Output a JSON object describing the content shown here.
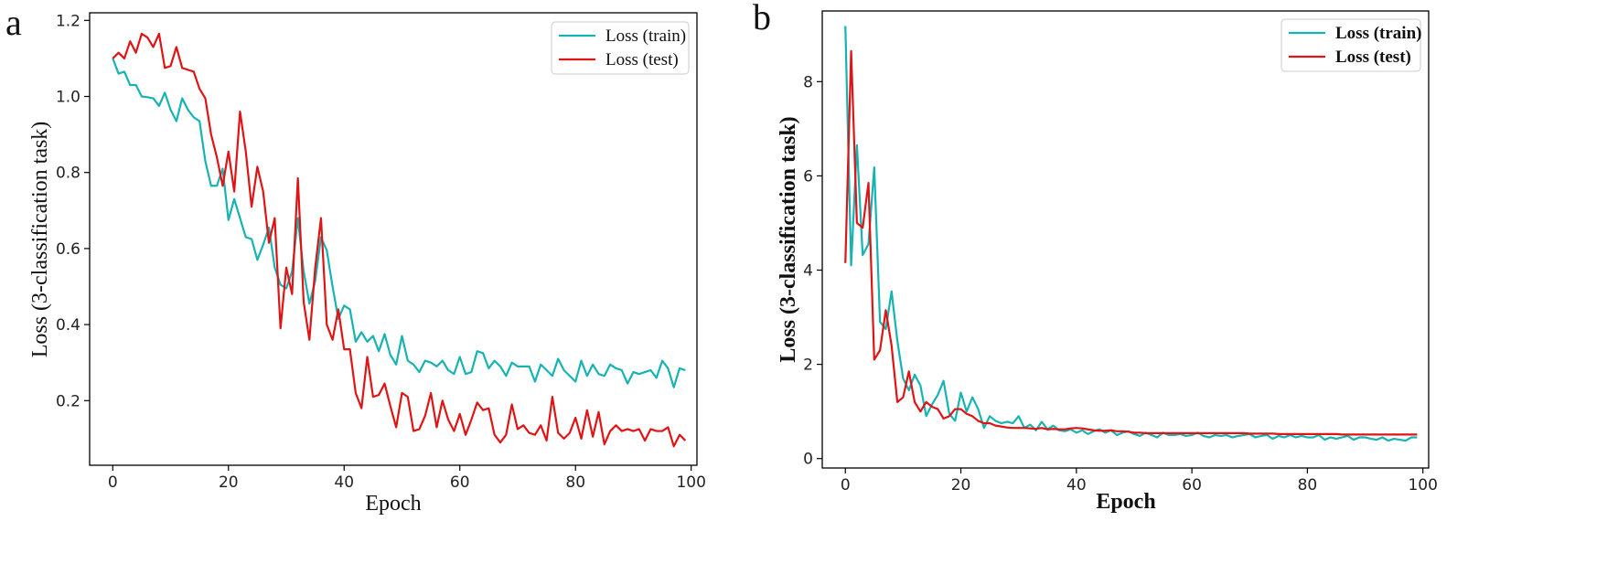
{
  "panels": [
    {
      "letter": "a",
      "xlabel": "Epoch",
      "ylabel": "Loss (3-classification task)",
      "legend": [
        "Loss (train)",
        "Loss (test)"
      ]
    },
    {
      "letter": "b",
      "xlabel": "Epoch",
      "ylabel": "Loss (3-classification task)",
      "legend": [
        "Loss (train)",
        "Loss (test)"
      ]
    }
  ],
  "colors": {
    "train": "#17b3b3",
    "test": "#e01414"
  },
  "chart_data": [
    {
      "type": "line",
      "title": "",
      "xlabel": "Epoch",
      "ylabel": "Loss (3-classification task)",
      "xlim": [
        -4,
        101
      ],
      "ylim": [
        0.03,
        1.22
      ],
      "xticks": [
        0,
        20,
        40,
        60,
        80,
        100
      ],
      "yticks": [
        0.2,
        0.4,
        0.6,
        0.8,
        1.0,
        1.2
      ],
      "ytick_labels": [
        "0.2",
        "0.4",
        "0.6",
        "0.8",
        "1.0",
        "1.2"
      ],
      "legend_position": "top-right",
      "series": [
        {
          "name": "Loss (train)",
          "color": "#17b3b3",
          "values": [
            1.1,
            1.06,
            1.065,
            1.03,
            1.03,
            1.0,
            0.998,
            0.995,
            0.975,
            1.01,
            0.965,
            0.935,
            0.995,
            0.965,
            0.945,
            0.935,
            0.83,
            0.765,
            0.765,
            0.81,
            0.675,
            0.73,
            0.68,
            0.63,
            0.625,
            0.57,
            0.61,
            0.655,
            0.55,
            0.505,
            0.495,
            0.54,
            0.68,
            0.54,
            0.455,
            0.515,
            0.63,
            0.595,
            0.5,
            0.415,
            0.45,
            0.44,
            0.355,
            0.38,
            0.355,
            0.37,
            0.33,
            0.375,
            0.32,
            0.295,
            0.37,
            0.305,
            0.295,
            0.275,
            0.305,
            0.3,
            0.29,
            0.305,
            0.28,
            0.27,
            0.315,
            0.27,
            0.275,
            0.33,
            0.325,
            0.285,
            0.305,
            0.29,
            0.265,
            0.3,
            0.29,
            0.29,
            0.29,
            0.25,
            0.295,
            0.28,
            0.265,
            0.31,
            0.28,
            0.265,
            0.25,
            0.305,
            0.265,
            0.295,
            0.27,
            0.265,
            0.295,
            0.285,
            0.28,
            0.245,
            0.275,
            0.27,
            0.275,
            0.28,
            0.26,
            0.305,
            0.285,
            0.235,
            0.285,
            0.28
          ]
        },
        {
          "name": "Loss (test)",
          "color": "#e01414",
          "values": [
            1.1,
            1.115,
            1.1,
            1.145,
            1.115,
            1.165,
            1.155,
            1.13,
            1.165,
            1.075,
            1.08,
            1.13,
            1.075,
            1.07,
            1.065,
            1.02,
            0.995,
            0.9,
            0.84,
            0.765,
            0.855,
            0.75,
            0.96,
            0.855,
            0.71,
            0.815,
            0.75,
            0.615,
            0.68,
            0.39,
            0.55,
            0.48,
            0.785,
            0.46,
            0.36,
            0.55,
            0.68,
            0.4,
            0.36,
            0.44,
            0.335,
            0.335,
            0.22,
            0.18,
            0.315,
            0.21,
            0.215,
            0.245,
            0.185,
            0.13,
            0.22,
            0.21,
            0.12,
            0.125,
            0.16,
            0.22,
            0.13,
            0.2,
            0.15,
            0.12,
            0.165,
            0.11,
            0.15,
            0.195,
            0.175,
            0.18,
            0.11,
            0.09,
            0.11,
            0.19,
            0.125,
            0.135,
            0.115,
            0.11,
            0.135,
            0.095,
            0.21,
            0.115,
            0.1,
            0.115,
            0.155,
            0.1,
            0.175,
            0.105,
            0.17,
            0.085,
            0.12,
            0.135,
            0.12,
            0.125,
            0.12,
            0.125,
            0.095,
            0.125,
            0.12,
            0.12,
            0.13,
            0.08,
            0.11,
            0.095
          ]
        }
      ]
    },
    {
      "type": "line",
      "title": "",
      "xlabel": "Epoch",
      "ylabel": "Loss (3-classification task)",
      "xlim": [
        -4,
        101
      ],
      "ylim": [
        -0.2,
        9.5
      ],
      "xticks": [
        0,
        20,
        40,
        60,
        80,
        100
      ],
      "yticks": [
        0,
        2,
        4,
        6,
        8
      ],
      "ytick_labels": [
        "0",
        "2",
        "4",
        "6",
        "8"
      ],
      "legend_position": "top-right",
      "series": [
        {
          "name": "Loss (train)",
          "color": "#17b3b3",
          "values": [
            9.18,
            4.1,
            6.65,
            4.32,
            4.55,
            6.18,
            2.9,
            2.75,
            3.55,
            2.5,
            1.7,
            1.45,
            1.78,
            1.55,
            0.9,
            1.15,
            1.35,
            1.65,
            0.95,
            0.8,
            1.4,
            1.0,
            1.3,
            1.05,
            0.65,
            0.9,
            0.8,
            0.75,
            0.78,
            0.75,
            0.9,
            0.65,
            0.72,
            0.6,
            0.78,
            0.62,
            0.7,
            0.6,
            0.58,
            0.62,
            0.55,
            0.6,
            0.52,
            0.58,
            0.62,
            0.55,
            0.6,
            0.5,
            0.55,
            0.58,
            0.52,
            0.48,
            0.55,
            0.5,
            0.45,
            0.55,
            0.5,
            0.5,
            0.52,
            0.48,
            0.5,
            0.55,
            0.48,
            0.45,
            0.5,
            0.48,
            0.5,
            0.45,
            0.48,
            0.5,
            0.52,
            0.45,
            0.48,
            0.5,
            0.42,
            0.48,
            0.45,
            0.5,
            0.45,
            0.48,
            0.45,
            0.45,
            0.5,
            0.4,
            0.45,
            0.42,
            0.45,
            0.48,
            0.4,
            0.45,
            0.45,
            0.42,
            0.4,
            0.45,
            0.38,
            0.42,
            0.4,
            0.38,
            0.45,
            0.45
          ]
        },
        {
          "name": "Loss (test)",
          "color": "#e01414",
          "values": [
            4.15,
            8.65,
            5.0,
            4.9,
            5.85,
            2.1,
            2.3,
            3.15,
            2.4,
            1.2,
            1.3,
            1.85,
            1.2,
            1.0,
            1.2,
            1.1,
            1.05,
            0.85,
            0.9,
            1.05,
            1.05,
            0.95,
            0.9,
            0.8,
            0.75,
            0.75,
            0.7,
            0.68,
            0.66,
            0.65,
            0.65,
            0.65,
            0.64,
            0.63,
            0.65,
            0.62,
            0.63,
            0.62,
            0.62,
            0.64,
            0.65,
            0.64,
            0.62,
            0.6,
            0.59,
            0.59,
            0.6,
            0.58,
            0.58,
            0.57,
            0.55,
            0.55,
            0.54,
            0.54,
            0.54,
            0.54,
            0.54,
            0.54,
            0.54,
            0.54,
            0.54,
            0.54,
            0.54,
            0.54,
            0.54,
            0.54,
            0.54,
            0.54,
            0.54,
            0.54,
            0.53,
            0.53,
            0.53,
            0.53,
            0.53,
            0.52,
            0.52,
            0.52,
            0.52,
            0.52,
            0.52,
            0.52,
            0.52,
            0.52,
            0.52,
            0.52,
            0.51,
            0.51,
            0.51,
            0.51,
            0.51,
            0.51,
            0.51,
            0.51,
            0.51,
            0.51,
            0.51,
            0.51,
            0.51,
            0.51
          ]
        }
      ]
    }
  ]
}
